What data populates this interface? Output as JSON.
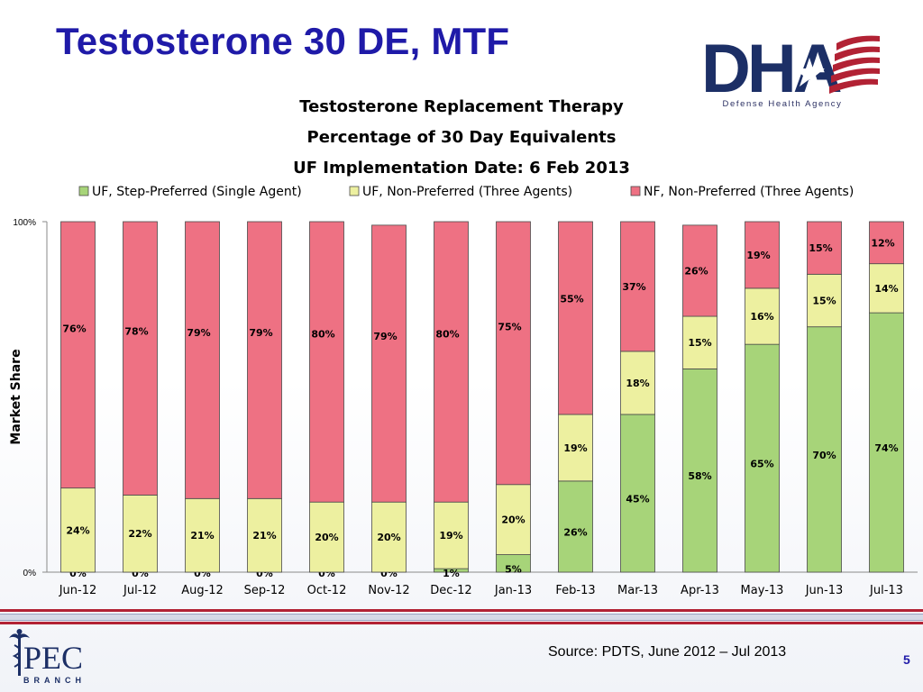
{
  "slide": {
    "title": "Testosterone 30 DE, MTF",
    "logo_text": "DHA",
    "logo_subtitle": "Defense Health Agency",
    "source": "Source: PDTS, June 2012 – Jul 2013",
    "page_number": "5",
    "footer_logo_text": "PEC",
    "footer_logo_subtitle": "BRANCH"
  },
  "chart_data": {
    "type": "bar",
    "stacked": true,
    "title": [
      "Testosterone Replacement Therapy",
      "Percentage of 30 Day Equivalents",
      "UF Implementation Date: 6 Feb 2013"
    ],
    "ylabel": "Market Share",
    "xlabel": "",
    "ylim": [
      0,
      100
    ],
    "ytick_labels": [
      "0%",
      "100%"
    ],
    "legend_position": "top",
    "categories": [
      "Jun-12",
      "Jul-12",
      "Aug-12",
      "Sep-12",
      "Oct-12",
      "Nov-12",
      "Dec-12",
      "Jan-13",
      "Feb-13",
      "Mar-13",
      "Apr-13",
      "May-13",
      "Jun-13",
      "Jul-13"
    ],
    "series": [
      {
        "name": "UF, Step-Preferred (Single Agent)",
        "color": "#a7d479",
        "values": [
          0,
          0,
          0,
          0,
          0,
          0,
          1,
          5,
          26,
          45,
          58,
          65,
          70,
          74
        ],
        "labels": [
          "0%",
          "0%",
          "0%",
          "0%",
          "0%",
          "0%",
          "1%",
          "5%",
          "26%",
          "45%",
          "58%",
          "65%",
          "70%",
          "74%"
        ]
      },
      {
        "name": "UF, Non-Preferred (Three Agents)",
        "color": "#edf0a0",
        "values": [
          24,
          22,
          21,
          21,
          20,
          20,
          19,
          20,
          19,
          18,
          15,
          16,
          15,
          14
        ],
        "labels": [
          "24%",
          "22%",
          "21%",
          "21%",
          "20%",
          "20%",
          "19%",
          "20%",
          "19%",
          "18%",
          "15%",
          "16%",
          "15%",
          "14%"
        ]
      },
      {
        "name": "NF, Non-Preferred (Three Agents)",
        "color": "#ee7183",
        "values": [
          76,
          78,
          79,
          79,
          80,
          79,
          80,
          75,
          55,
          37,
          26,
          19,
          15,
          12
        ],
        "labels": [
          "76%",
          "78%",
          "79%",
          "79%",
          "80%",
          "79%",
          "80%",
          "75%",
          "55%",
          "37%",
          "26%",
          "19%",
          "15%",
          "12%"
        ]
      }
    ]
  }
}
